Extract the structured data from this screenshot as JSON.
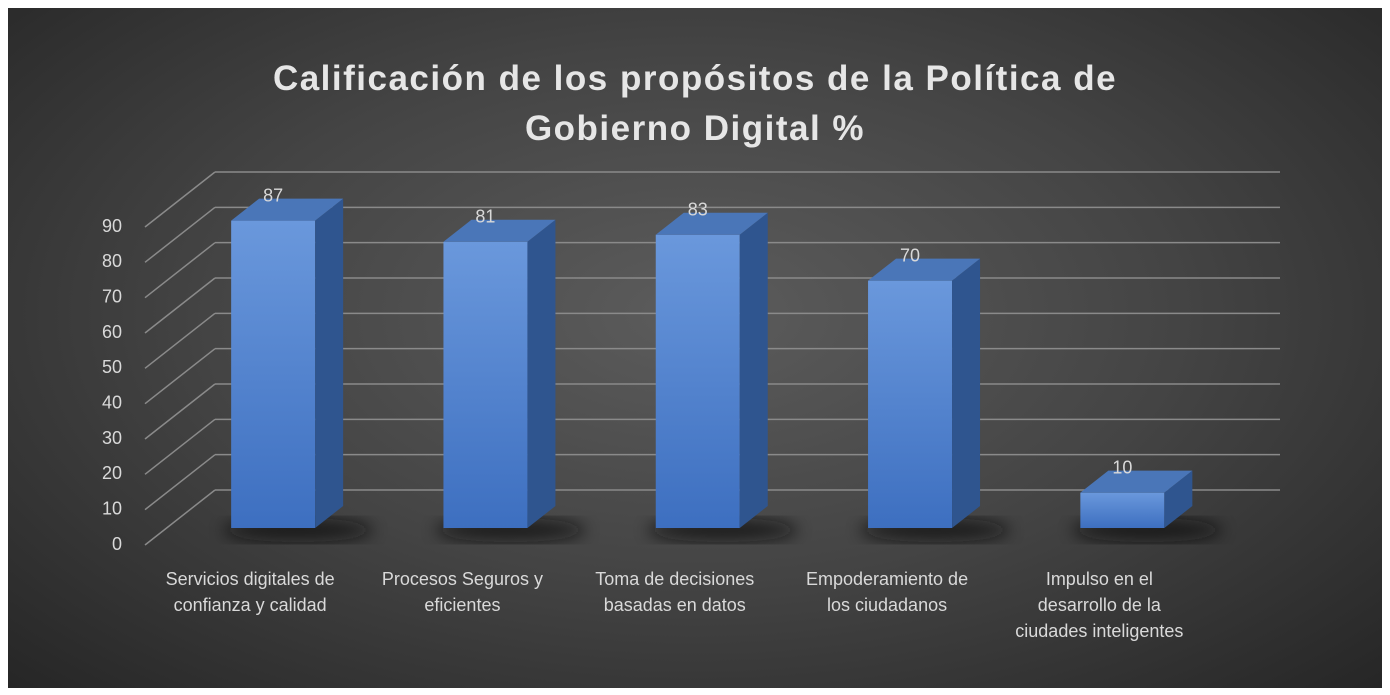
{
  "chart_data": {
    "type": "bar3d",
    "title": "Calificación de los propósitos de la Política de Gobierno Digital %",
    "categories": [
      "Servicios digitales de confianza y calidad",
      "Procesos Seguros y eficientes",
      "Toma de decisiones basadas en datos",
      "Empoderamiento de los ciudadanos",
      "Impulso en el desarrollo de la ciudades inteligentes"
    ],
    "values": [
      87,
      81,
      83,
      70,
      10
    ],
    "color": "#4f82cf",
    "ylim": [
      0,
      90
    ],
    "yticks": [
      0,
      10,
      20,
      30,
      40,
      50,
      60,
      70,
      80,
      90
    ],
    "grid": true
  }
}
